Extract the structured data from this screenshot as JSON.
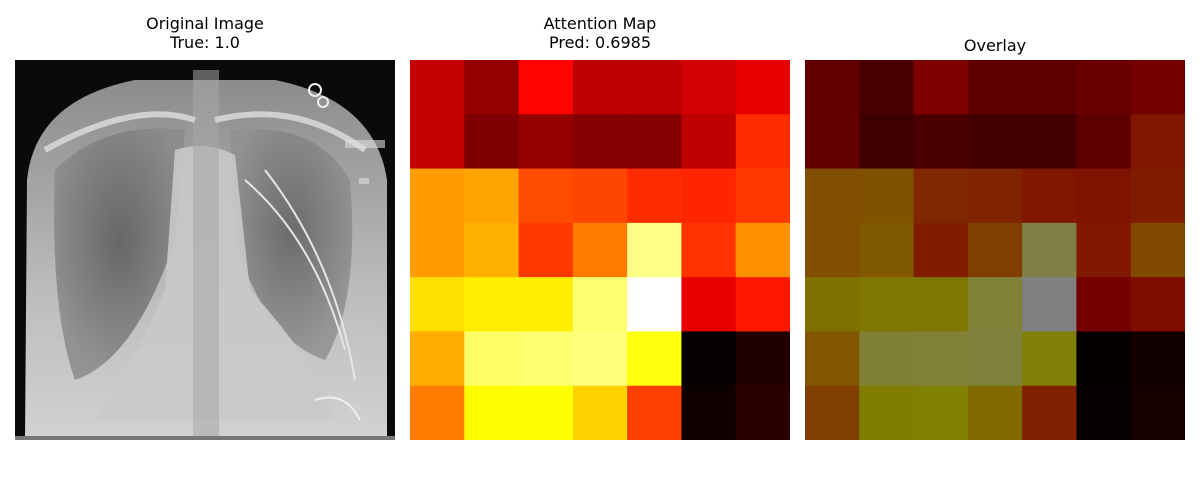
{
  "panels": [
    {
      "title_line1": "Original Image",
      "title_line2": "True: 1.0"
    },
    {
      "title_line1": "Attention Map",
      "title_line2": "Pred: 0.6985"
    },
    {
      "title_line1": "Overlay",
      "title_line2": ""
    }
  ],
  "overlay_base_color": "#ff0000",
  "chart_data": {
    "type": "heatmap",
    "colormap": "hot",
    "grid": [
      7,
      7
    ],
    "values": [
      [
        0.28,
        0.21,
        0.37,
        0.27,
        0.27,
        0.3,
        0.33
      ],
      [
        0.28,
        0.18,
        0.21,
        0.19,
        0.19,
        0.27,
        0.43
      ],
      [
        0.6,
        0.61,
        0.48,
        0.47,
        0.43,
        0.42,
        0.45
      ],
      [
        0.6,
        0.63,
        0.45,
        0.55,
        0.88,
        0.44,
        0.58
      ],
      [
        0.7,
        0.72,
        0.72,
        0.86,
        1.0,
        0.33,
        0.4
      ],
      [
        0.62,
        0.85,
        0.86,
        0.87,
        0.76,
        0.01,
        0.05
      ],
      [
        0.55,
        0.74,
        0.75,
        0.68,
        0.46,
        0.02,
        0.06
      ]
    ]
  }
}
